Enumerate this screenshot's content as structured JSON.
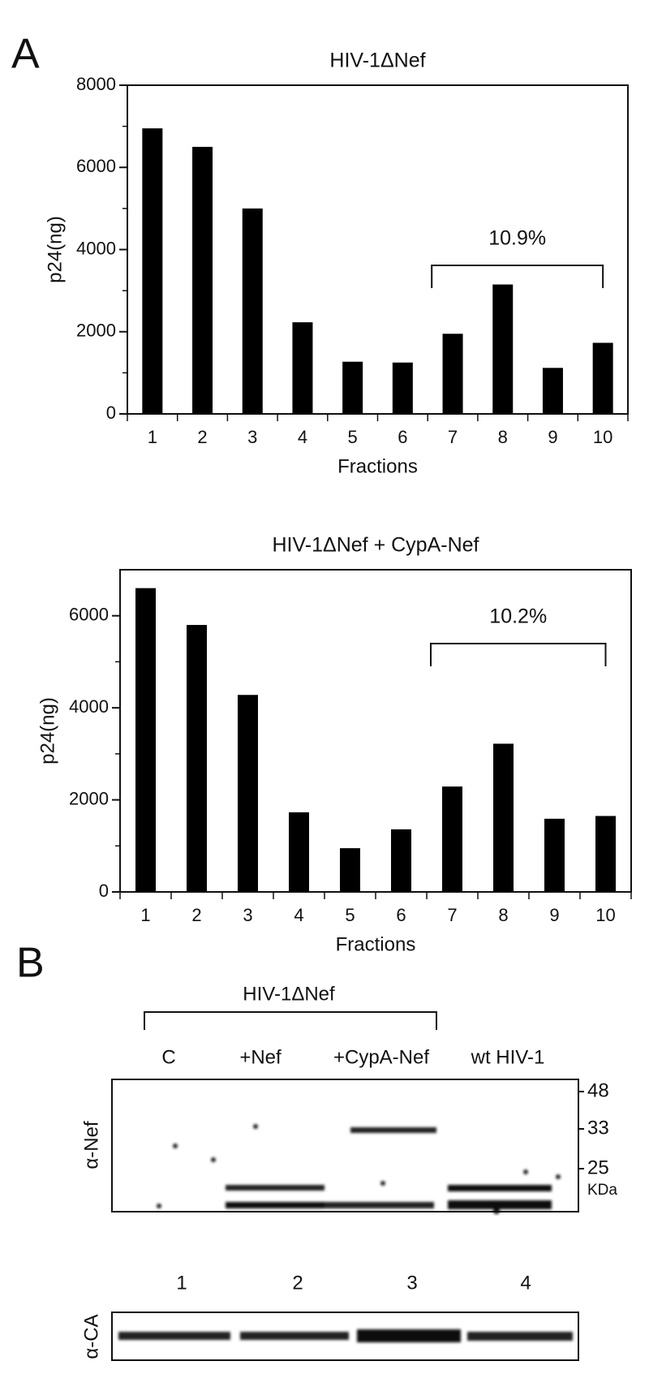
{
  "chart_data": [
    {
      "type": "bar",
      "title": "HIV-1ΔNef",
      "panel": "A",
      "x_label": "Fractions",
      "y_label": "p24(ng)",
      "categories": [
        "1",
        "2",
        "3",
        "4",
        "5",
        "6",
        "7",
        "8",
        "9",
        "10"
      ],
      "values": [
        6950,
        6500,
        5000,
        2230,
        1270,
        1250,
        1950,
        3150,
        1120,
        1730
      ],
      "color": "#000000",
      "ylim": [
        0,
        8000
      ],
      "yticks": [
        0,
        2000,
        4000,
        6000,
        8000
      ],
      "minor_yticks": [
        1000,
        3000,
        5000,
        7000
      ],
      "annotation": "10.9%"
    },
    {
      "type": "bar",
      "title": "HIV-1ΔNef + CypA-Nef",
      "x_label": "Fractions",
      "y_label": "p24(ng)",
      "categories": [
        "1",
        "2",
        "3",
        "4",
        "5",
        "6",
        "7",
        "8",
        "9",
        "10"
      ],
      "values": [
        6600,
        5800,
        4280,
        1730,
        950,
        1360,
        2290,
        3220,
        1590,
        1650
      ],
      "color": "#000000",
      "ylim": [
        0,
        7000
      ],
      "yticks": [
        0,
        2000,
        4000,
        6000
      ],
      "minor_yticks": [
        1000,
        3000,
        5000
      ],
      "annotation": "10.2%"
    }
  ],
  "blot": {
    "panel": "B",
    "group_label": "HIV-1ΔNef",
    "lanes": [
      "C",
      "+Nef",
      "+CypA-Nef",
      "wt HIV-1"
    ],
    "lane_numbers": [
      "1",
      "2",
      "3",
      "4"
    ],
    "top_antibody": "α-Nef",
    "bottom_antibody": "α-CA",
    "markers": [
      "48",
      "33",
      "25"
    ],
    "marker_unit": "KDa"
  }
}
